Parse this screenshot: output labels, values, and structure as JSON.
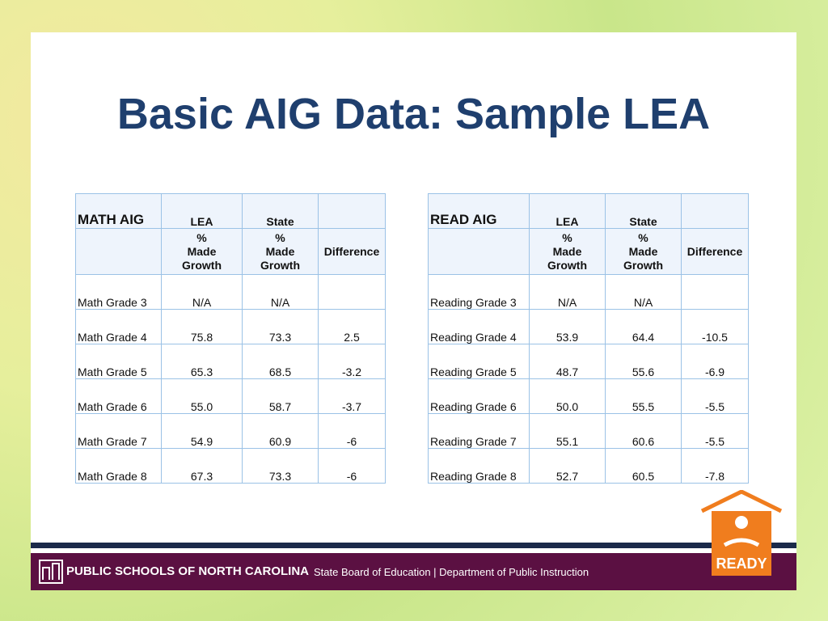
{
  "title": "Basic AIG Data:  Sample LEA",
  "tables": [
    {
      "label": "MATH AIG",
      "columns": [
        "LEA",
        "State"
      ],
      "subheader": [
        "%\nMade\nGrowth",
        "%\nMade\nGrowth",
        "Difference"
      ],
      "rows": [
        [
          "Math Grade 3",
          "N/A",
          "N/A"
        ],
        [
          "Math Grade 4",
          "75.8",
          "73.3",
          "2.5"
        ],
        [
          "Math Grade 5",
          "65.3",
          "68.5",
          "-3.2"
        ],
        [
          "Math Grade 6",
          "55.0",
          "58.7",
          "-3.7"
        ],
        [
          "Math Grade 7",
          "54.9",
          "60.9",
          "-6"
        ],
        [
          "Math Grade 8",
          "67.3",
          "73.3",
          "-6"
        ]
      ]
    },
    {
      "label": "READ AIG",
      "columns": [
        "LEA",
        "State"
      ],
      "subheader": [
        "%\nMade\nGrowth",
        "%\nMade\nGrowth",
        "Difference"
      ],
      "rows": [
        [
          "Reading Grade 3",
          "N/A",
          "N/A"
        ],
        [
          "Reading Grade 4",
          "53.9",
          "64.4",
          "-10.5"
        ],
        [
          "Reading Grade 5",
          "48.7",
          "55.6",
          "-6.9"
        ],
        [
          "Reading Grade 6",
          "50.0",
          "55.5",
          "-5.5"
        ],
        [
          "Reading Grade 7",
          "55.1",
          "60.6",
          "-5.5"
        ],
        [
          "Reading Grade 8",
          "52.7",
          "60.5",
          "-7.8"
        ]
      ]
    }
  ],
  "footer": {
    "org": "PUBLIC SCHOOLS OF NORTH CAROLINA",
    "sub": "State Board of Education | Department of Public Instruction"
  },
  "logo": "READY"
}
